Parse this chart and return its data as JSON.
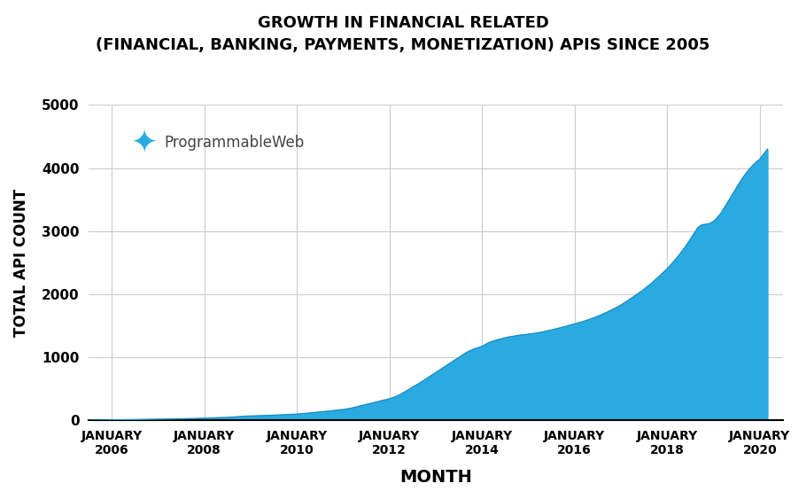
{
  "title_line1": "GROWTH IN FINANCIAL RELATED",
  "title_line2": "(FINANCIAL, BANKING, PAYMENTS, MONETIZATION) APIS SINCE 2005",
  "xlabel": "MONTH",
  "ylabel": "TOTAL API COUNT",
  "fill_color": "#29ABE2",
  "line_color": "#29ABE2",
  "background_color": "#FFFFFF",
  "grid_color": "#CCCCCC",
  "ylim": [
    0,
    5000
  ],
  "yticks": [
    0,
    1000,
    2000,
    3000,
    4000,
    5000
  ],
  "watermark_text": "ProgrammableWeb",
  "x_years": [
    2006,
    2008,
    2010,
    2012,
    2014,
    2016,
    2018,
    2020
  ],
  "x_labels": [
    "JANUARY\n2006",
    "JANUARY\n2008",
    "JANUARY\n2010",
    "JANUARY\n2012",
    "JANUARY\n2014",
    "JANUARY\n2016",
    "JANUARY\n2018",
    "JANUARY\n2020"
  ],
  "data_x": [
    2005.0,
    2005.083,
    2005.167,
    2005.25,
    2005.333,
    2005.417,
    2005.5,
    2005.583,
    2005.667,
    2005.75,
    2005.833,
    2005.917,
    2006.0,
    2006.083,
    2006.167,
    2006.25,
    2006.333,
    2006.417,
    2006.5,
    2006.583,
    2006.667,
    2006.75,
    2006.833,
    2006.917,
    2007.0,
    2007.083,
    2007.167,
    2007.25,
    2007.333,
    2007.417,
    2007.5,
    2007.583,
    2007.667,
    2007.75,
    2007.833,
    2007.917,
    2008.0,
    2008.083,
    2008.167,
    2008.25,
    2008.333,
    2008.417,
    2008.5,
    2008.583,
    2008.667,
    2008.75,
    2008.833,
    2008.917,
    2009.0,
    2009.083,
    2009.167,
    2009.25,
    2009.333,
    2009.417,
    2009.5,
    2009.583,
    2009.667,
    2009.75,
    2009.833,
    2009.917,
    2010.0,
    2010.083,
    2010.167,
    2010.25,
    2010.333,
    2010.417,
    2010.5,
    2010.583,
    2010.667,
    2010.75,
    2010.833,
    2010.917,
    2011.0,
    2011.083,
    2011.167,
    2011.25,
    2011.333,
    2011.417,
    2011.5,
    2011.583,
    2011.667,
    2011.75,
    2011.833,
    2011.917,
    2012.0,
    2012.083,
    2012.167,
    2012.25,
    2012.333,
    2012.417,
    2012.5,
    2012.583,
    2012.667,
    2012.75,
    2012.833,
    2012.917,
    2013.0,
    2013.083,
    2013.167,
    2013.25,
    2013.333,
    2013.417,
    2013.5,
    2013.583,
    2013.667,
    2013.75,
    2013.833,
    2013.917,
    2014.0,
    2014.083,
    2014.167,
    2014.25,
    2014.333,
    2014.417,
    2014.5,
    2014.583,
    2014.667,
    2014.75,
    2014.833,
    2014.917,
    2015.0,
    2015.083,
    2015.167,
    2015.25,
    2015.333,
    2015.417,
    2015.5,
    2015.583,
    2015.667,
    2015.75,
    2015.833,
    2015.917,
    2016.0,
    2016.083,
    2016.167,
    2016.25,
    2016.333,
    2016.417,
    2016.5,
    2016.583,
    2016.667,
    2016.75,
    2016.833,
    2016.917,
    2017.0,
    2017.083,
    2017.167,
    2017.25,
    2017.333,
    2017.417,
    2017.5,
    2017.583,
    2017.667,
    2017.75,
    2017.833,
    2017.917,
    2018.0,
    2018.083,
    2018.167,
    2018.25,
    2018.333,
    2018.417,
    2018.5,
    2018.583,
    2018.667,
    2018.75,
    2018.833,
    2018.917,
    2019.0,
    2019.083,
    2019.167,
    2019.25,
    2019.333,
    2019.417,
    2019.5,
    2019.583,
    2019.667,
    2019.75,
    2019.833,
    2019.917,
    2020.0,
    2020.083,
    2020.167
  ],
  "data_y": [
    0,
    1,
    1,
    2,
    2,
    3,
    3,
    4,
    5,
    6,
    7,
    8,
    9,
    10,
    11,
    12,
    13,
    14,
    15,
    16,
    17,
    18,
    19,
    20,
    21,
    22,
    23,
    25,
    26,
    27,
    28,
    29,
    30,
    32,
    34,
    36,
    38,
    40,
    42,
    44,
    46,
    48,
    50,
    54,
    58,
    62,
    66,
    70,
    72,
    74,
    76,
    78,
    80,
    83,
    86,
    88,
    90,
    93,
    96,
    99,
    102,
    107,
    112,
    118,
    124,
    130,
    136,
    142,
    148,
    155,
    162,
    168,
    175,
    185,
    195,
    210,
    225,
    240,
    255,
    270,
    285,
    300,
    315,
    330,
    345,
    365,
    390,
    420,
    455,
    490,
    530,
    565,
    600,
    640,
    680,
    720,
    760,
    800,
    840,
    880,
    920,
    960,
    1000,
    1040,
    1080,
    1110,
    1135,
    1155,
    1175,
    1210,
    1240,
    1260,
    1280,
    1295,
    1310,
    1325,
    1335,
    1345,
    1355,
    1360,
    1368,
    1376,
    1385,
    1395,
    1408,
    1420,
    1435,
    1450,
    1465,
    1480,
    1498,
    1515,
    1530,
    1548,
    1565,
    1585,
    1605,
    1628,
    1652,
    1678,
    1706,
    1735,
    1765,
    1795,
    1830,
    1868,
    1908,
    1950,
    1992,
    2035,
    2080,
    2128,
    2178,
    2232,
    2288,
    2345,
    2405,
    2470,
    2540,
    2615,
    2695,
    2780,
    2870,
    2965,
    3060,
    3100,
    3110,
    3120,
    3155,
    3215,
    3290,
    3390,
    3490,
    3590,
    3690,
    3790,
    3880,
    3960,
    4030,
    4090,
    4140,
    4220,
    4300
  ],
  "xlim_left": 2005.5,
  "xlim_right": 2020.5
}
